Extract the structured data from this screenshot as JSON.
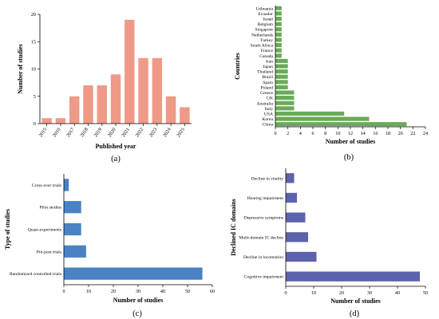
{
  "colors": {
    "a": "#ef9a88",
    "b": "#6aaa59",
    "c": "#4a82c4",
    "d": "#5c62ac",
    "axis": "#000000"
  },
  "chart_data": [
    {
      "id": "a",
      "panel_label": "(a)",
      "type": "bar",
      "orientation": "vertical",
      "categories": [
        "2015",
        "2016",
        "2017",
        "2018",
        "2019",
        "2020",
        "2021",
        "2022",
        "2023",
        "2024",
        "2025"
      ],
      "values": [
        1,
        1,
        5,
        7,
        7,
        9,
        19,
        12,
        12,
        5,
        3
      ],
      "xlabel": "Published year",
      "ylabel": "Number of studies",
      "ylim": [
        0,
        20
      ],
      "yticks": [
        0,
        5,
        10,
        15,
        20
      ],
      "grid": false
    },
    {
      "id": "b",
      "panel_label": "(b)",
      "type": "bar",
      "orientation": "horizontal",
      "categories": [
        "Lithuania",
        "Ecuador",
        "Israel",
        "Belgium",
        "Singapore",
        "Netherlands",
        "Turkey",
        "South Africa",
        "France",
        "Canada",
        "Iran",
        "Japan",
        "Thailand",
        "Brazil",
        "Spain",
        "Poland",
        "Greece",
        "UK",
        "Australia",
        "Italy",
        "USA",
        "Korea",
        "China"
      ],
      "values": [
        1,
        1,
        1,
        1,
        1,
        1,
        1,
        1,
        1,
        1,
        2,
        2,
        2,
        2,
        2,
        2,
        3,
        3,
        3,
        3,
        11,
        15,
        21
      ],
      "xlabel": "Number of studies",
      "ylabel": "Countries",
      "xlim": [
        0,
        24
      ],
      "xticks": [
        0,
        2,
        4,
        6,
        8,
        10,
        12,
        14,
        16,
        18,
        20,
        22,
        24
      ],
      "grid": false
    },
    {
      "id": "c",
      "panel_label": "(c)",
      "type": "bar",
      "orientation": "horizontal",
      "categories": [
        "Cross-over trials",
        "Pilot studies",
        "Quasi-experiments",
        "Pre-post trials",
        "Randomized controlled trials"
      ],
      "values": [
        2,
        7,
        7,
        9,
        56
      ],
      "xlabel": "Number of studies",
      "ylabel": "Type of studies",
      "xlim": [
        0,
        60
      ],
      "xticks": [
        0,
        10,
        20,
        30,
        40,
        50,
        60
      ],
      "grid": false
    },
    {
      "id": "d",
      "panel_label": "(d)",
      "type": "bar",
      "orientation": "horizontal",
      "categories": [
        "Decline in vitality",
        "Hearing impairment",
        "Depressive symptoms",
        "Multi-domain IC decline",
        "Decline in locomotion",
        "Cognitive impairment"
      ],
      "values": [
        3,
        4,
        7,
        8,
        11,
        48
      ],
      "xlabel": "Number of studies",
      "ylabel": "Declined IC domains",
      "xlim": [
        0,
        50
      ],
      "xticks": [
        0,
        10,
        20,
        30,
        40,
        50
      ],
      "grid": false
    }
  ]
}
